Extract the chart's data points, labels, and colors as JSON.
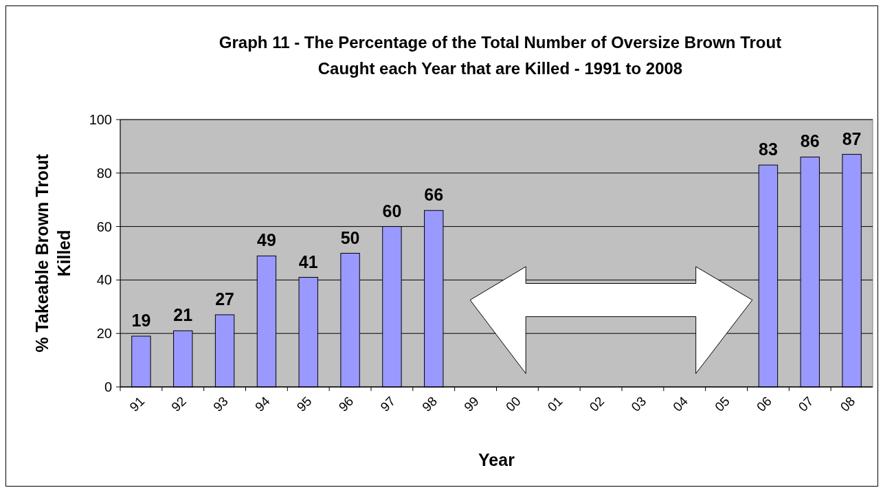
{
  "chart_data": {
    "type": "bar",
    "title": "Graph 11 - The Percentage of the Total Number of Oversize Brown Trout Caught each Year that are Killed - 1991 to 2008",
    "xlabel": "Year",
    "ylabel": "% Takeable Brown Trout Killed",
    "categories": [
      "91",
      "92",
      "93",
      "94",
      "95",
      "96",
      "97",
      "98",
      "99",
      "00",
      "01",
      "02",
      "03",
      "04",
      "05",
      "06",
      "07",
      "08"
    ],
    "values": [
      19,
      21,
      27,
      49,
      41,
      50,
      60,
      66,
      null,
      null,
      null,
      null,
      null,
      null,
      null,
      83,
      86,
      87
    ],
    "color": "#9999ff",
    "ylim": [
      0,
      100
    ],
    "yticks": [
      0,
      20,
      40,
      60,
      80,
      100
    ],
    "grid": "y",
    "data_labels": true
  }
}
